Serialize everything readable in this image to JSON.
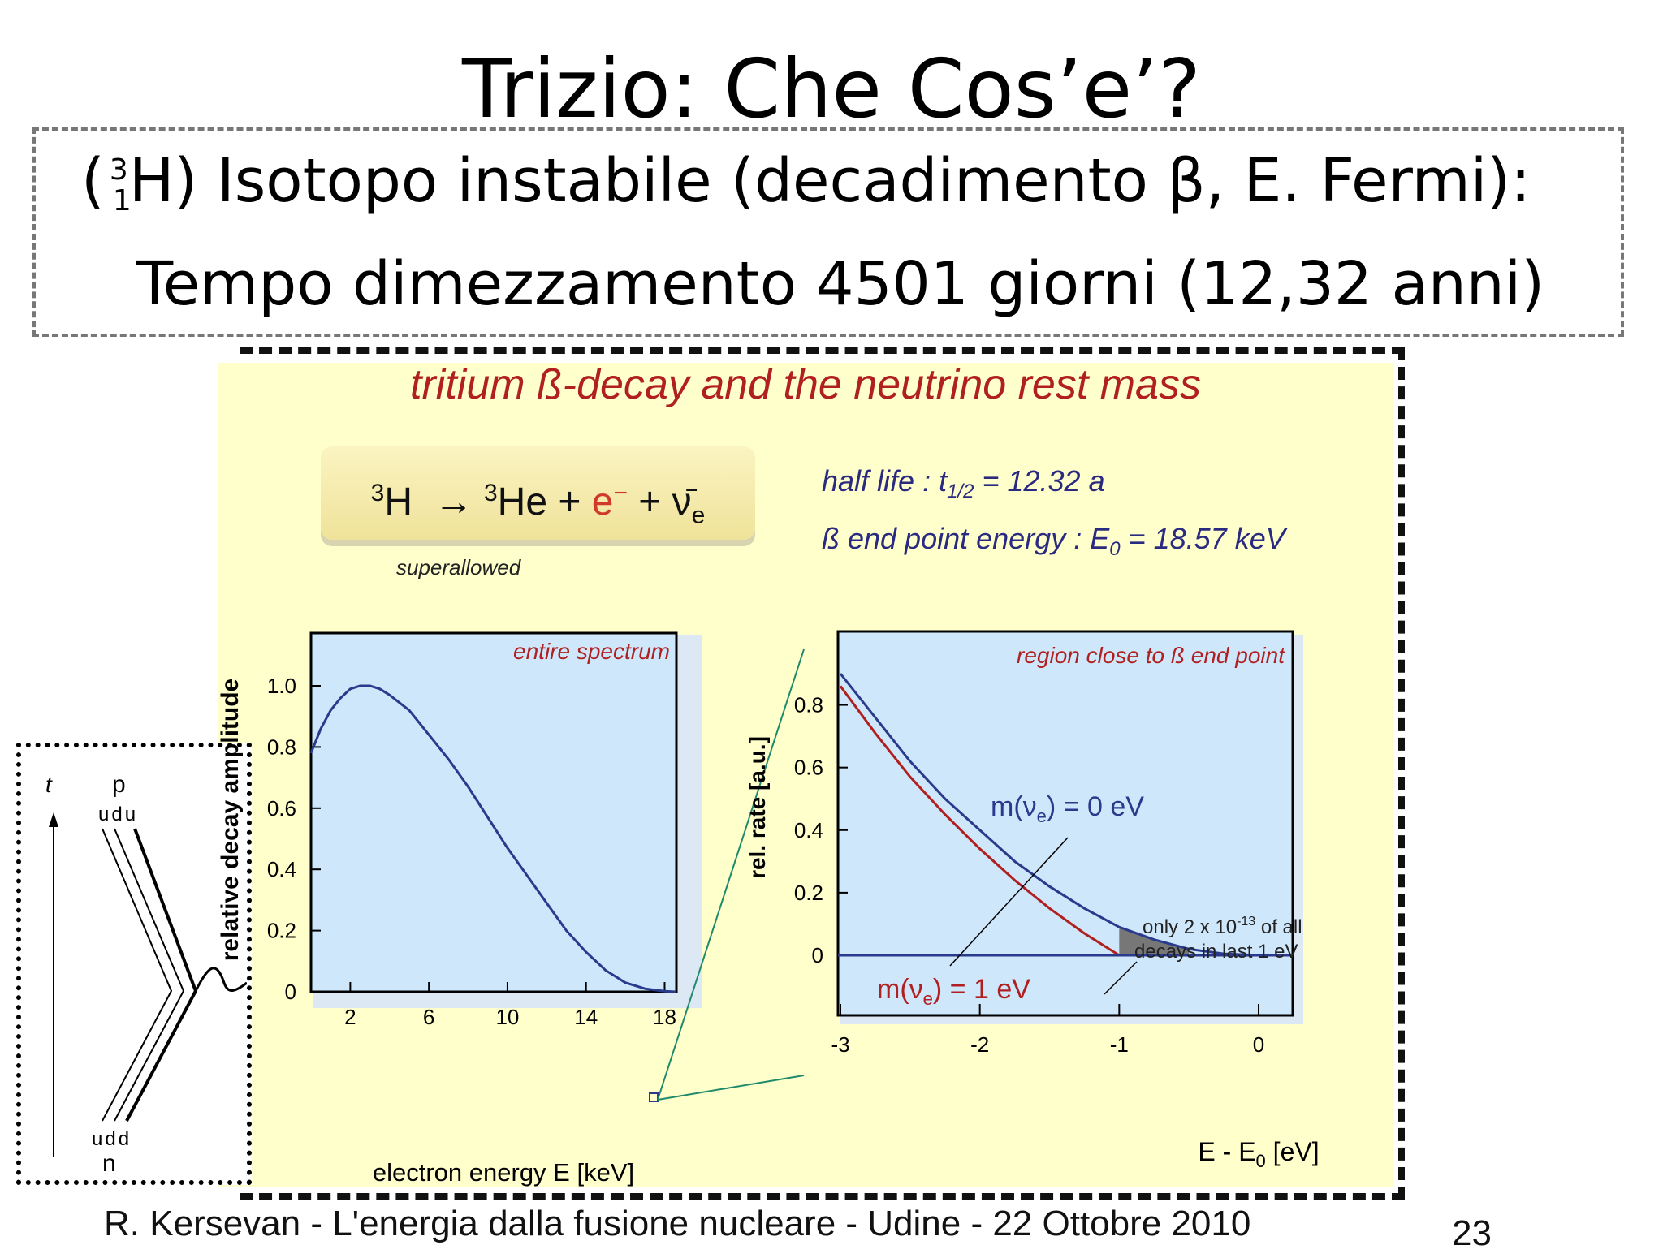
{
  "slide": {
    "title": "Trizio: Che Cos’e’?",
    "isotope_mass": "3",
    "isotope_z": "1",
    "line1_text": "H) Isotopo instabile (decadimento β, E. Fermi):",
    "line1_open": "(",
    "line2_text": "Tempo dimezzamento 4501 giorni (12,32 anni)",
    "footer": "R. Kersevan - L'energia dalla fusione nucleare - Udine - 22 Ottobre 2010",
    "page_number": "23"
  },
  "figure": {
    "title": "tritium ß-decay and the neutrino rest mass",
    "superallowed": "superallowed",
    "half_life_label": "half life : t",
    "half_life_sub": "1/2",
    "half_life_value": "= 12.32 a",
    "endpoint_label": "ß end point energy : E",
    "endpoint_sub": "0",
    "endpoint_value": "= 18.57 keV",
    "feynman": {
      "t": "t",
      "p": "p",
      "udu": "udu",
      "udd": "udd",
      "n": "n"
    }
  },
  "chart_data": [
    {
      "type": "line",
      "title": "entire spectrum",
      "xlabel": "electron energy E [keV]",
      "ylabel": "relative decay amplitude",
      "x_ticks": [
        2,
        6,
        10,
        14,
        18
      ],
      "y_ticks": [
        0,
        0.2,
        0.4,
        0.6,
        0.8,
        1.0
      ],
      "y_tick_labels": [
        "0",
        "0.2",
        "0.4",
        "0.6",
        "0.8",
        "1.0"
      ],
      "xlim": [
        0,
        18.6
      ],
      "ylim": [
        0,
        1.0
      ],
      "series": [
        {
          "values_x": [
            0,
            0.5,
            1,
            1.5,
            2,
            2.5,
            3,
            3.5,
            4,
            5,
            6,
            7,
            8,
            9,
            10,
            11,
            12,
            13,
            14,
            15,
            16,
            17,
            18,
            18.57
          ],
          "values_y": [
            0.78,
            0.86,
            0.92,
            0.96,
            0.99,
            1.0,
            1.0,
            0.99,
            0.97,
            0.92,
            0.84,
            0.76,
            0.67,
            0.57,
            0.47,
            0.38,
            0.29,
            0.2,
            0.13,
            0.07,
            0.03,
            0.01,
            0.002,
            0.0
          ]
        }
      ]
    },
    {
      "type": "line",
      "title": "region close to ß end point",
      "xlabel": "E - E0 [eV]",
      "ylabel": "rel. rate [a.u.]",
      "x_ticks": [
        -3,
        -2,
        -1,
        0
      ],
      "y_ticks": [
        0,
        0.2,
        0.4,
        0.6,
        0.8
      ],
      "xlim": [
        -3,
        0.3
      ],
      "ylim": [
        -0.1,
        0.92
      ],
      "annotation": "only 2 x 10-13 of all decays in last 1 eV",
      "series": [
        {
          "name": "m(νe) = 0 eV",
          "color": "#2a3a8c",
          "values_x": [
            -3,
            -2.75,
            -2.5,
            -2.25,
            -2,
            -1.75,
            -1.5,
            -1.25,
            -1,
            -0.75,
            -0.5,
            -0.25,
            0
          ],
          "values_y": [
            0.9,
            0.76,
            0.62,
            0.5,
            0.4,
            0.3,
            0.22,
            0.15,
            0.09,
            0.05,
            0.02,
            0.005,
            0
          ]
        },
        {
          "name": "m(νe) = 1 eV",
          "color": "#b02020",
          "values_x": [
            -3,
            -2.75,
            -2.5,
            -2.25,
            -2,
            -1.75,
            -1.5,
            -1.25,
            -1
          ],
          "values_y": [
            0.86,
            0.71,
            0.57,
            0.45,
            0.34,
            0.24,
            0.15,
            0.07,
            0
          ]
        }
      ]
    }
  ]
}
